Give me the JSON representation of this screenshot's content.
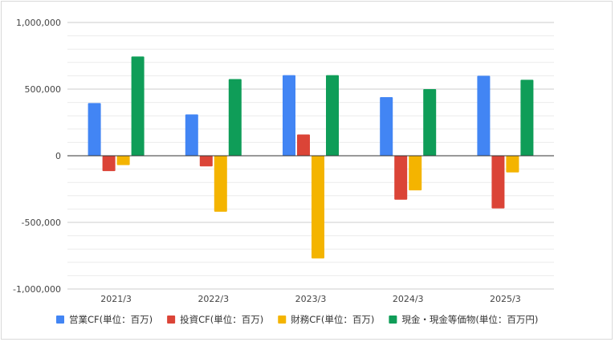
{
  "chart_data": {
    "type": "bar",
    "categories": [
      "2021/3",
      "2022/3",
      "2023/3",
      "2024/3",
      "2025/3"
    ],
    "series": [
      {
        "name": "営業CF(単位：百万)",
        "color": "#4285f4",
        "values": [
          395000,
          310000,
          605000,
          440000,
          600000
        ]
      },
      {
        "name": "投資CF(単位：百万)",
        "color": "#db4437",
        "values": [
          -115000,
          -80000,
          160000,
          -330000,
          -395000
        ]
      },
      {
        "name": "財務CF(単位：百万)",
        "color": "#f4b400",
        "values": [
          -70000,
          -420000,
          -770000,
          -260000,
          -125000
        ]
      },
      {
        "name": "現金・現金等価物(単位：百万円)",
        "color": "#0f9d58",
        "values": [
          745000,
          575000,
          605000,
          500000,
          570000
        ]
      }
    ],
    "ylim": [
      -1000000,
      1000000
    ],
    "yticks": [
      "1,000,000",
      "500,000",
      "0",
      "-500,000",
      "-1,000,000"
    ],
    "ytick_values": [
      1000000,
      500000,
      0,
      -500000,
      -1000000
    ],
    "grid": true,
    "legend_position": "bottom"
  }
}
